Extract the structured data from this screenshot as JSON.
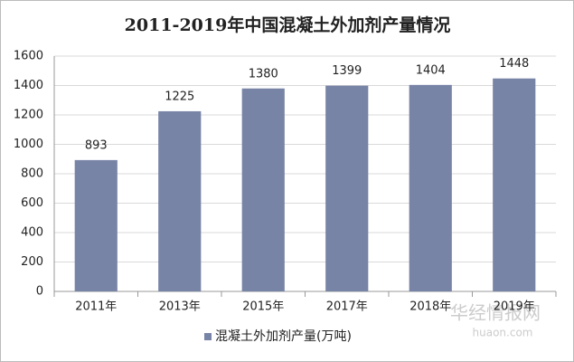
{
  "chart_data": {
    "type": "bar",
    "title": "2011-2019年中国混凝土外加剂产量情况",
    "categories": [
      "2011年",
      "2013年",
      "2015年",
      "2017年",
      "2018年",
      "2019年"
    ],
    "series": [
      {
        "name": "混凝土外加剂产量(万吨)",
        "color": "#7884a6",
        "values": [
          893,
          1225,
          1380,
          1399,
          1404,
          1448
        ]
      }
    ],
    "ylim": [
      0,
      1600
    ],
    "yticks": [
      0,
      200,
      400,
      600,
      800,
      1000,
      1200,
      1400,
      1600
    ],
    "grid": true,
    "legend": "bottom",
    "watermark": {
      "name": "华经情报网",
      "url": "huaon.com"
    }
  }
}
